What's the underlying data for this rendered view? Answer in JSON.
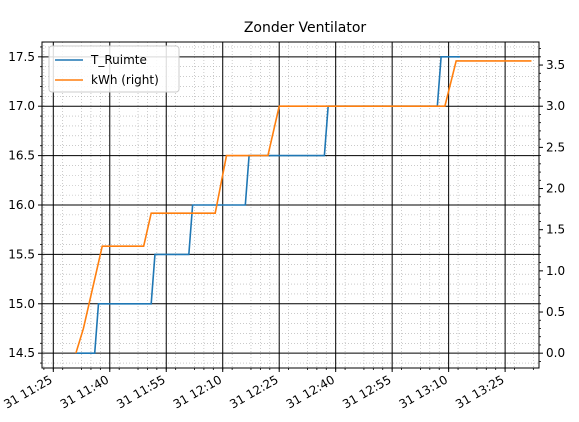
{
  "chart_data": {
    "type": "line",
    "title": "Zonder Ventilator",
    "xlabel": "",
    "ylabel": "",
    "x_ticks": [
      "31 11:25",
      "31 11:40",
      "31 11:55",
      "31 12:10",
      "31 12:25",
      "31 12:40",
      "31 12:55",
      "31 13:10",
      "31 13:25"
    ],
    "xlim": [
      "11:22",
      "13:34"
    ],
    "y_left_ticks": [
      "14.5",
      "15.0",
      "15.5",
      "16.0",
      "16.5",
      "17.0",
      "17.5"
    ],
    "y_left_lim": [
      14.35,
      17.65
    ],
    "y_right_ticks": [
      "0.0",
      "0.5",
      "1.0",
      "1.5",
      "2.0",
      "2.5",
      "3.0",
      "3.5"
    ],
    "y_right_lim": [
      -0.18,
      3.78
    ],
    "grid": "major solid, minor dotted",
    "legend_position": "top-left",
    "series": [
      {
        "name": "T_Ruimte",
        "axis": "left",
        "color": "#1f77b4",
        "x": [
          "11:31",
          "11:36",
          "11:37",
          "11:51",
          "11:52",
          "12:01",
          "12:02",
          "12:16",
          "12:17",
          "12:37",
          "12:38",
          "13:07",
          "13:08",
          "13:13"
        ],
        "values": [
          14.5,
          14.5,
          15.0,
          15.0,
          15.5,
          15.5,
          16.0,
          16.0,
          16.5,
          16.5,
          17.0,
          17.0,
          17.5,
          17.5
        ]
      },
      {
        "name": "kWh (right)",
        "axis": "right",
        "color": "#ff7f0e",
        "x": [
          "11:31",
          "11:33",
          "11:38",
          "11:49",
          "11:51",
          "12:08",
          "12:11",
          "12:22",
          "12:25",
          "12:38",
          "12:41",
          "12:48",
          "12:52",
          "13:09",
          "13:12",
          "13:32"
        ],
        "values": [
          0.0,
          0.3,
          1.3,
          1.3,
          1.7,
          1.7,
          2.4,
          2.4,
          3.0,
          3.0,
          3.0,
          3.0,
          3.0,
          3.0,
          3.55,
          3.55
        ]
      }
    ]
  }
}
